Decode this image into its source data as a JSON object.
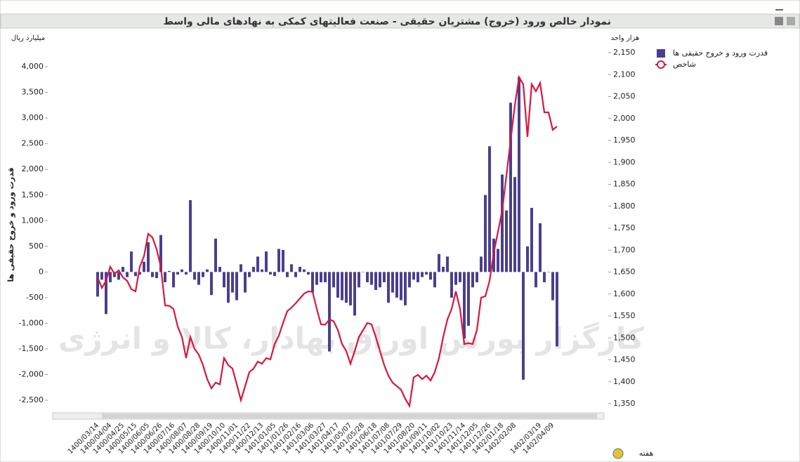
{
  "chart_data": {
    "type": "combo",
    "title": "نمودار خالص ورود (خروج) مشتریان حقیقی - صنعت فعالیتهای کمکی به نهادهای مالی واسط",
    "y_unit": "میلیارد ریال",
    "y2_unit": "هزار واحد",
    "ylabel": "قدرت ورود و خروج حقیقی ها",
    "xlabel": "هفته",
    "watermark": "کارگزار بورس اوراق بهادار، کالا و انرژی",
    "categories": [
      "1400/03/14",
      null,
      null,
      "1400/04/04",
      null,
      null,
      "1400/04/25",
      null,
      null,
      "1400/05/15",
      null,
      null,
      "1400/06/05",
      null,
      null,
      "1400/06/26",
      null,
      null,
      "1400/07/16",
      null,
      null,
      "1400/08/07",
      null,
      null,
      "1400/08/28",
      null,
      null,
      "1400/09/19",
      null,
      null,
      "1400/10/10",
      null,
      null,
      "1400/11/01",
      null,
      null,
      "1400/11/22",
      null,
      null,
      "1400/12/13",
      null,
      null,
      "1401/01/05",
      null,
      null,
      "1401/01/26",
      null,
      null,
      "1401/02/16",
      null,
      null,
      "1401/03/06",
      null,
      null,
      "1401/03/27",
      null,
      null,
      "1401/04/17",
      null,
      null,
      "1401/05/07",
      null,
      null,
      "1401/05/28",
      null,
      null,
      "1401/06/18",
      null,
      null,
      "1401/07/08",
      null,
      null,
      "1401/07/29",
      null,
      null,
      "1401/08/20",
      null,
      null,
      "1401/09/11",
      null,
      null,
      "1401/10/02",
      null,
      null,
      "1401/10/23",
      null,
      null,
      "1401/11/14",
      null,
      null,
      "1401/12/05",
      null,
      null,
      "1401/12/26",
      null,
      null,
      "1402/01/18",
      null,
      null,
      "1402/02/08",
      null,
      null,
      null,
      null,
      null,
      "1402/03/19",
      null,
      null,
      "1402/04/09",
      null
    ],
    "series": [
      {
        "name": "قدرت ورود و خروج حقیقی ها",
        "type": "bar",
        "color": "#4b3f8f",
        "values": [
          -480,
          -150,
          -820,
          -200,
          -100,
          -150,
          100,
          -100,
          400,
          -80,
          -50,
          200,
          580,
          -100,
          -120,
          720,
          -200,
          20,
          -300,
          -50,
          50,
          -50,
          1400,
          -150,
          -250,
          -100,
          50,
          -450,
          650,
          100,
          -300,
          -600,
          -400,
          -550,
          150,
          -400,
          -100,
          100,
          300,
          50,
          400,
          -50,
          -80,
          450,
          430,
          -100,
          150,
          -100,
          100,
          50,
          -50,
          -400,
          -250,
          -200,
          -200,
          -1550,
          -300,
          -500,
          -550,
          -600,
          -650,
          -850,
          -300,
          0,
          -200,
          -250,
          -350,
          -300,
          -200,
          -600,
          -400,
          -500,
          -550,
          -650,
          -300,
          -150,
          -200,
          -100,
          -50,
          -150,
          -300,
          350,
          100,
          300,
          -500,
          -250,
          -200,
          -1300,
          -1050,
          -300,
          -200,
          300,
          1500,
          2450,
          650,
          450,
          1900,
          1200,
          3300,
          1850,
          3800,
          -2100,
          500,
          1250,
          -300,
          950,
          -200,
          0,
          -550,
          -1450
        ]
      },
      {
        "name": "شاخص",
        "type": "line",
        "axis": "y2",
        "color": "#d8173f",
        "values": [
          1638,
          1614,
          1630,
          1662,
          1646,
          1654,
          1638,
          1630,
          1611,
          1606,
          1662,
          1686,
          1737,
          1729,
          1702,
          1662,
          1574,
          1573,
          1566,
          1526,
          1502,
          1454,
          1502,
          1475,
          1462,
          1438,
          1406,
          1385,
          1398,
          1394,
          1454,
          1438,
          1430,
          1395,
          1358,
          1390,
          1422,
          1430,
          1446,
          1441,
          1454,
          1451,
          1486,
          1505,
          1534,
          1561,
          1569,
          1579,
          1590,
          1601,
          1606,
          1605,
          1566,
          1531,
          1530,
          1542,
          1538,
          1518,
          1486,
          1470,
          1441,
          1470,
          1502,
          1518,
          1534,
          1531,
          1502,
          1470,
          1438,
          1414,
          1398,
          1390,
          1382,
          1361,
          1345,
          1410,
          1416,
          1406,
          1414,
          1403,
          1422,
          1454,
          1502,
          1542,
          1566,
          1606,
          1566,
          1486,
          1488,
          1486,
          1518,
          1592,
          1595,
          1630,
          1694,
          1742,
          1790,
          1870,
          1950,
          2030,
          2094,
          2078,
          1958,
          2078,
          2062,
          2081,
          2014,
          2014,
          1974,
          1982
        ]
      }
    ],
    "ylim": [
      -2705,
      4275
    ],
    "yticks": [
      {
        "value": -2500,
        "label": "-2,500"
      },
      {
        "value": -2000,
        "label": "-2,000"
      },
      {
        "value": -1500,
        "label": "-1,500"
      },
      {
        "value": -1000,
        "label": "-1,000"
      },
      -500,
      0,
      500,
      {
        "value": 1000,
        "label": "1,000"
      },
      {
        "value": 1500,
        "label": "1,500"
      },
      {
        "value": 2000,
        "label": "2,000"
      },
      {
        "value": 2500,
        "label": "2,500"
      },
      {
        "value": 3000,
        "label": "3,000"
      },
      {
        "value": 3500,
        "label": "3,500"
      },
      {
        "value": 4000,
        "label": "4,000"
      }
    ],
    "y2lim": [
      1334,
      2150
    ],
    "y2ticks": [
      {
        "value": 1350,
        "label": "1,350"
      },
      {
        "value": 1400,
        "label": "1,400"
      },
      {
        "value": 1450,
        "label": "1,450"
      },
      {
        "value": 1500,
        "label": "1,500"
      },
      {
        "value": 1550,
        "label": "1,550"
      },
      {
        "value": 1600,
        "label": "1,600"
      },
      {
        "value": 1650,
        "label": "1,650"
      },
      {
        "value": 1700,
        "label": "1,700"
      },
      {
        "value": 1750,
        "label": "1,750"
      },
      {
        "value": 1800,
        "label": "1,800"
      },
      {
        "value": 1850,
        "label": "1,850"
      },
      {
        "value": 1900,
        "label": "1,900"
      },
      {
        "value": 1950,
        "label": "1,950"
      },
      {
        "value": 2000,
        "label": "2,000"
      },
      {
        "value": 2050,
        "label": "2,050"
      },
      {
        "value": 2100,
        "label": "2,100"
      },
      {
        "value": 2150,
        "label": "2,150"
      }
    ],
    "grid": false,
    "legend": "right"
  }
}
